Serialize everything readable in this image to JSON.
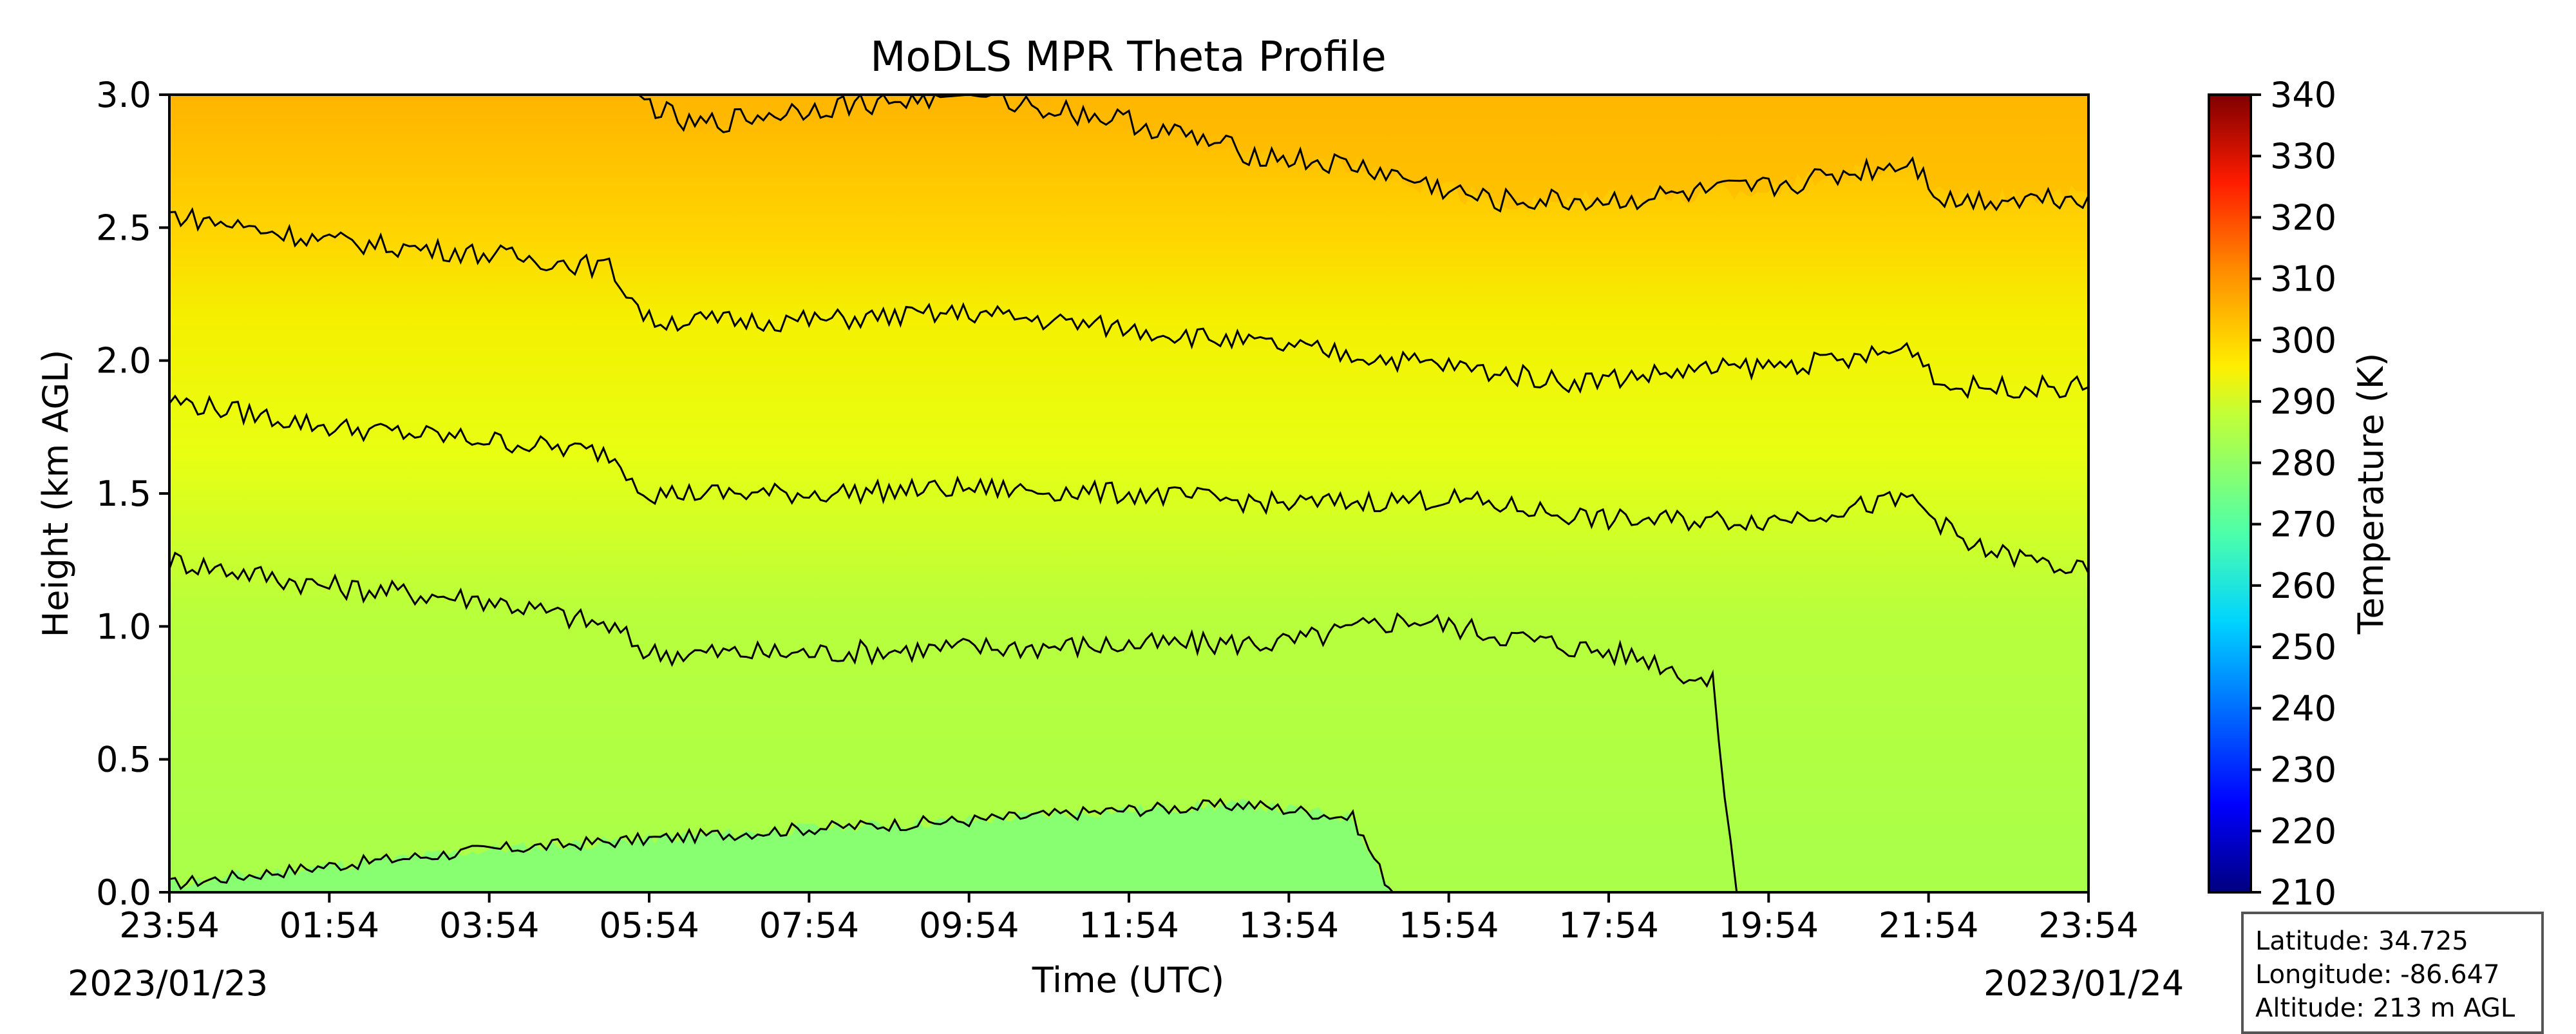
{
  "chart_data": {
    "type": "heatmap",
    "title": "MoDLS MPR Theta Profile",
    "xlabel": "Time (UTC)",
    "ylabel": "Height (km AGL)",
    "x_ticks": [
      "23:54",
      "01:54",
      "03:54",
      "05:54",
      "07:54",
      "09:54",
      "11:54",
      "13:54",
      "15:54",
      "17:54",
      "19:54",
      "21:54",
      "23:54"
    ],
    "x_range_hours": [
      0,
      24
    ],
    "start_date": "2023/01/23",
    "end_date": "2023/01/24",
    "y_ticks": [
      0.0,
      0.5,
      1.0,
      1.5,
      2.0,
      2.5,
      3.0
    ],
    "y_tick_labels": [
      "0.0",
      "0.5",
      "1.0",
      "1.5",
      "2.0",
      "2.5",
      "3.0"
    ],
    "ylim": [
      0,
      3.0
    ],
    "colorbar": {
      "label": "Temperature (K)",
      "range": [
        210,
        340
      ],
      "ticks": [
        210,
        220,
        230,
        240,
        250,
        260,
        270,
        280,
        290,
        300,
        310,
        320,
        330,
        340
      ],
      "colormap": "jet"
    },
    "contours": [
      {
        "level": 280,
        "heights": [
          [
            0,
            0.03
          ],
          [
            2,
            0.1
          ],
          [
            4,
            0.16
          ],
          [
            6,
            0.2
          ],
          [
            8,
            0.24
          ],
          [
            10,
            0.27
          ],
          [
            12,
            0.31
          ],
          [
            13.5,
            0.33
          ],
          [
            14.8,
            0.28
          ],
          [
            15.2,
            0.05
          ],
          [
            15.3,
            0.0
          ]
        ]
      },
      {
        "level": 285,
        "heights": [
          [
            0,
            1.25
          ],
          [
            2,
            1.15
          ],
          [
            4,
            1.1
          ],
          [
            5.5,
            1.0
          ],
          [
            6,
            0.9
          ],
          [
            8,
            0.9
          ],
          [
            10,
            0.92
          ],
          [
            12,
            0.93
          ],
          [
            14,
            0.94
          ],
          [
            15.5,
            1.03
          ],
          [
            17,
            0.95
          ],
          [
            18.5,
            0.88
          ],
          [
            19.3,
            0.78
          ],
          [
            19.6,
            0.0
          ]
        ]
      },
      {
        "level": 290,
        "heights": [
          [
            0,
            1.85
          ],
          [
            2,
            1.75
          ],
          [
            4,
            1.7
          ],
          [
            5.5,
            1.65
          ],
          [
            6,
            1.5
          ],
          [
            8,
            1.5
          ],
          [
            10,
            1.52
          ],
          [
            12,
            1.5
          ],
          [
            14,
            1.46
          ],
          [
            16,
            1.48
          ],
          [
            18,
            1.4
          ],
          [
            20,
            1.4
          ],
          [
            21.8,
            1.48
          ],
          [
            22.5,
            1.3
          ],
          [
            24,
            1.2
          ]
        ]
      },
      {
        "level": 295,
        "heights": [
          [
            0,
            2.55
          ],
          [
            2,
            2.45
          ],
          [
            4,
            2.4
          ],
          [
            5.5,
            2.35
          ],
          [
            6,
            2.15
          ],
          [
            8,
            2.15
          ],
          [
            10,
            2.18
          ],
          [
            12,
            2.12
          ],
          [
            14,
            2.05
          ],
          [
            16,
            1.98
          ],
          [
            17.5,
            1.92
          ],
          [
            19,
            1.96
          ],
          [
            21,
            2.0
          ],
          [
            21.8,
            2.05
          ],
          [
            22.2,
            1.9
          ],
          [
            24,
            1.9
          ]
        ]
      },
      {
        "level": 300,
        "heights": [
          [
            5.8,
            3.0
          ],
          [
            6.5,
            2.88
          ],
          [
            8,
            2.95
          ],
          [
            10,
            3.0
          ],
          [
            12,
            2.9
          ],
          [
            13.5,
            2.78
          ],
          [
            15,
            2.72
          ],
          [
            16.5,
            2.6
          ],
          [
            18,
            2.6
          ],
          [
            20,
            2.65
          ],
          [
            21.8,
            2.75
          ],
          [
            22.2,
            2.6
          ],
          [
            24,
            2.62
          ]
        ]
      }
    ]
  },
  "info": {
    "latitude": "Latitude: 34.725",
    "longitude": "Longitude: -86.647",
    "altitude": "Altitude: 213 m AGL"
  },
  "colors": {
    "contour_line": "#000000"
  }
}
